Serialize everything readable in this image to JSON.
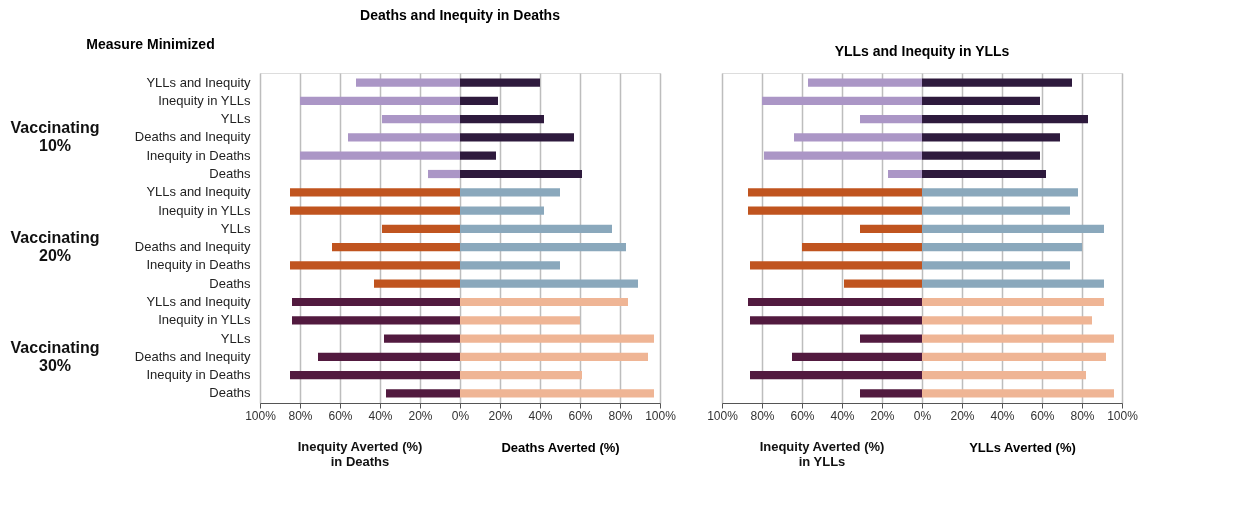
{
  "chart_data": [
    {
      "type": "bar",
      "orientation": "horizontal",
      "title": "Deaths and Inequity in Deaths",
      "ylabel": "Measure Minimized",
      "xlabel": "Deaths Averted (%)",
      "annotations": [
        "Vaccinating\n10%",
        "Vaccinating\n20%",
        "Vaccinating\n30%",
        "Inequity Averted (%)\nin Deaths"
      ],
      "stacked": true,
      "categories": [
        "YLLs and Inequity",
        "Inequity in YLLs",
        "YLLs",
        "Deaths and Inequity",
        "Inequity in Deaths",
        "Deaths",
        "YLLs and Inequity",
        "Inequity in YLLs",
        "YLLs",
        "Deaths and Inequity",
        "Inequity in Deaths",
        "Deaths",
        "YLLs and Inequity",
        "Inequity in YLLs",
        "YLLs",
        "Deaths and Inequity",
        "Inequity in Deaths",
        "Deaths"
      ],
      "series": [
        {
          "color": "#ab96c6",
          "values": [
            -52,
            -80,
            -39,
            -56,
            -80,
            -16,
            null,
            null,
            null,
            null,
            null,
            null,
            null,
            null,
            null,
            null,
            null,
            null
          ]
        },
        {
          "color": "#2e1a3d",
          "values": [
            40,
            19,
            42,
            57,
            18,
            61,
            null,
            null,
            null,
            null,
            null,
            null,
            null,
            null,
            null,
            null,
            null,
            null
          ]
        },
        {
          "color": "#c0541f",
          "values": [
            null,
            null,
            null,
            null,
            null,
            null,
            -85,
            -85,
            -39,
            -64,
            -85,
            -43,
            null,
            null,
            null,
            null,
            null,
            null
          ]
        },
        {
          "color": "#8aa8bc",
          "values": [
            null,
            null,
            null,
            null,
            null,
            null,
            50,
            42,
            76,
            83,
            50,
            89,
            null,
            null,
            null,
            null,
            null,
            null
          ]
        },
        {
          "color": "#521a3f",
          "values": [
            null,
            null,
            null,
            null,
            null,
            null,
            null,
            null,
            null,
            null,
            null,
            null,
            -84,
            -84,
            -38,
            -71,
            -85,
            -37
          ]
        },
        {
          "color": "#efb595",
          "values": [
            null,
            null,
            null,
            null,
            null,
            null,
            null,
            null,
            null,
            null,
            null,
            null,
            84,
            60,
            97,
            94,
            61,
            97
          ]
        }
      ],
      "xlim": [
        -100,
        100
      ],
      "xticks": [
        {
          "value": -100,
          "label": "100%"
        },
        {
          "value": -80,
          "label": "80%"
        },
        {
          "value": -60,
          "label": "60%"
        },
        {
          "value": -40,
          "label": "40%"
        },
        {
          "value": -20,
          "label": "20%"
        },
        {
          "value": 0,
          "label": "0%"
        },
        {
          "value": 20,
          "label": "20%"
        },
        {
          "value": 40,
          "label": "40%"
        },
        {
          "value": 60,
          "label": "60%"
        },
        {
          "value": 80,
          "label": "80%"
        },
        {
          "value": 100,
          "label": "100%"
        }
      ],
      "grid": "x"
    },
    {
      "type": "bar",
      "orientation": "horizontal",
      "title": "YLLs and Inequity in YLLs",
      "xlabel": "YLLs Averted (%)",
      "annotations": [
        "Inequity Averted (%)\nin YLLs"
      ],
      "categories": [
        null,
        null,
        null,
        null,
        null,
        null,
        null,
        null,
        null,
        null,
        null,
        null,
        null,
        null,
        null,
        null,
        null,
        null
      ],
      "stacked": true,
      "series": [
        {
          "color": "#ab96c6",
          "values": [
            -57,
            -80,
            -31,
            -64,
            -79,
            -17,
            null,
            null,
            null,
            null,
            null,
            null,
            null,
            null,
            null,
            null,
            null,
            null
          ]
        },
        {
          "color": "#2e1a3d",
          "values": [
            75,
            59,
            83,
            69,
            59,
            62,
            null,
            null,
            null,
            null,
            null,
            null,
            null,
            null,
            null,
            null,
            null,
            null
          ]
        },
        {
          "color": "#c0541f",
          "values": [
            null,
            null,
            null,
            null,
            null,
            null,
            -87,
            -87,
            -31,
            -60,
            -86,
            -39,
            null,
            null,
            null,
            null,
            null,
            null
          ]
        },
        {
          "color": "#8aa8bc",
          "values": [
            null,
            null,
            null,
            null,
            null,
            null,
            78,
            74,
            91,
            80,
            74,
            91,
            null,
            null,
            null,
            null,
            null,
            null
          ]
        },
        {
          "color": "#521a3f",
          "values": [
            null,
            null,
            null,
            null,
            null,
            null,
            null,
            null,
            null,
            null,
            null,
            null,
            -87,
            -86,
            -31,
            -65,
            -86,
            -31
          ]
        },
        {
          "color": "#efb595",
          "values": [
            null,
            null,
            null,
            null,
            null,
            null,
            null,
            null,
            null,
            null,
            null,
            null,
            91,
            85,
            96,
            92,
            82,
            96
          ]
        }
      ],
      "xlim": [
        -100,
        100
      ],
      "xticks": [
        {
          "value": -100,
          "label": "100%"
        },
        {
          "value": -80,
          "label": "80%"
        },
        {
          "value": -60,
          "label": "60%"
        },
        {
          "value": -40,
          "label": "40%"
        },
        {
          "value": -20,
          "label": "20%"
        },
        {
          "value": 0,
          "label": "0%"
        },
        {
          "value": 20,
          "label": "20%"
        },
        {
          "value": 40,
          "label": "40%"
        },
        {
          "value": 60,
          "label": "60%"
        },
        {
          "value": 80,
          "label": "80%"
        },
        {
          "value": 100,
          "label": "100%"
        }
      ],
      "grid": "x"
    }
  ]
}
